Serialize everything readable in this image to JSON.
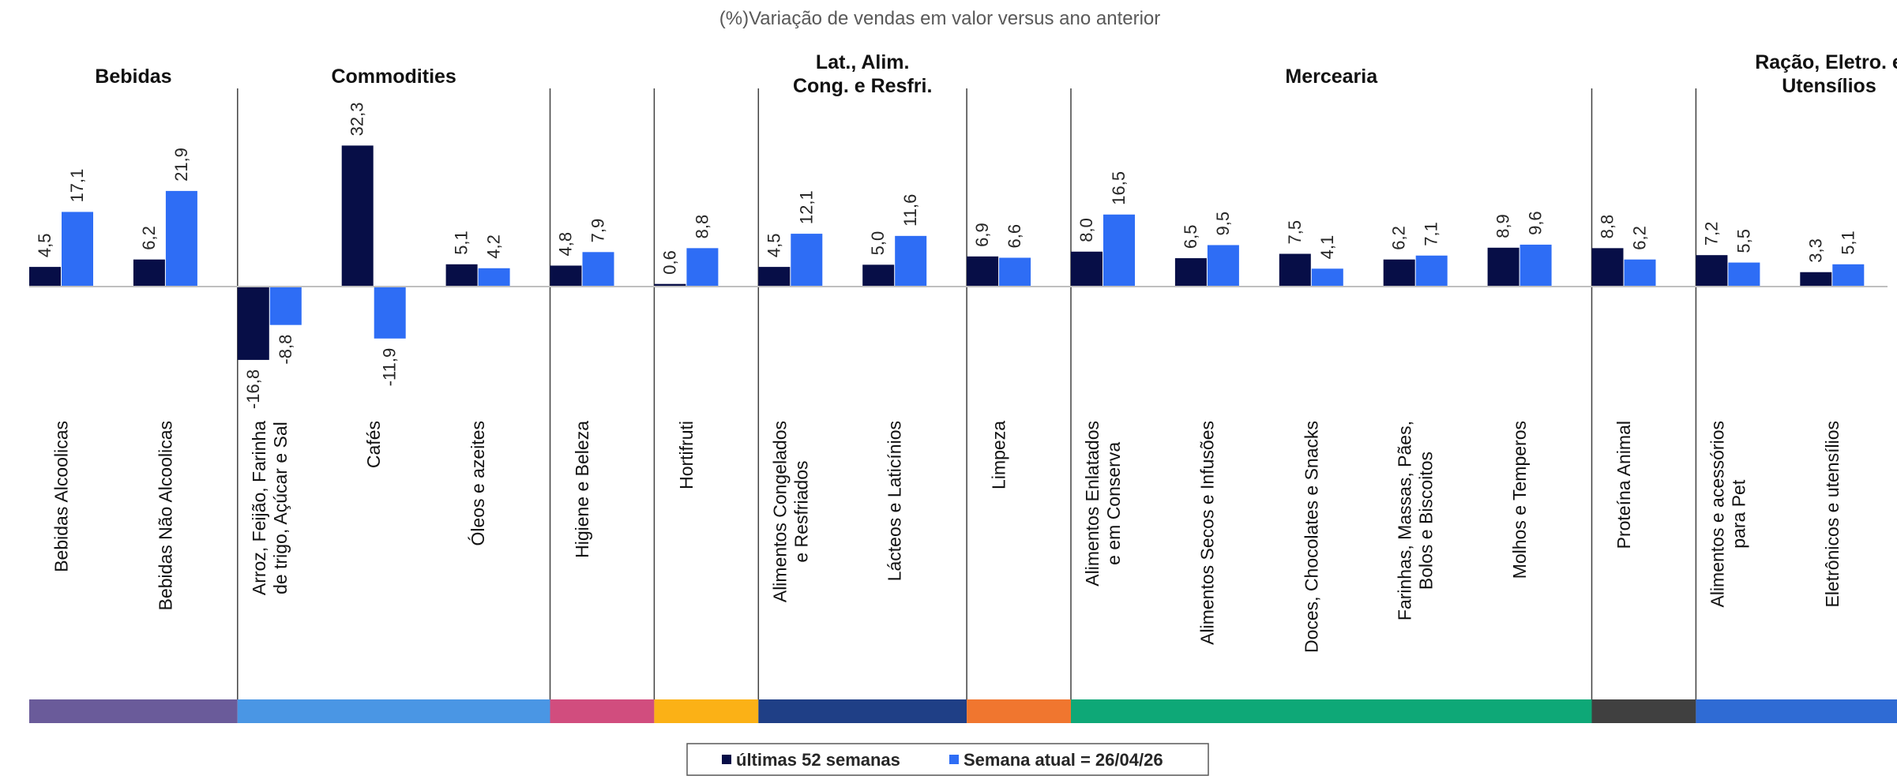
{
  "chart_data": {
    "type": "bar",
    "title": "(%)Variação de vendas em valor versus ano anterior",
    "xlabel": "",
    "ylabel": "",
    "ylim": [
      -21,
      40
    ],
    "grid": false,
    "legend_position": "bottom",
    "groups": [
      {
        "name": "Bebidas",
        "color": "#6A5B9A",
        "categories": [
          "Bebidas Alcoolicas",
          "Bebidas Não Alcoolicas"
        ]
      },
      {
        "name": "Commodities",
        "color": "#4A96E4",
        "categories": [
          "Arroz, Feijão, Farinha de trigo, Açúcar e Sal",
          "Cafés",
          "Óleos e azeites"
        ]
      },
      {
        "name": "",
        "color": "#D14D7E",
        "categories": [
          "Higiene e Beleza"
        ]
      },
      {
        "name": "",
        "color": "#FBB116",
        "categories": [
          "Hortifruti"
        ]
      },
      {
        "name": "Lat., Alim. Cong. e Resfri.",
        "color": "#1F3F86",
        "categories": [
          "Alimentos Congelados e Resfriados",
          "Lácteos e Laticínios"
        ]
      },
      {
        "name": "",
        "color": "#F0762F",
        "categories": [
          "Limpeza"
        ]
      },
      {
        "name": "Mercearia",
        "color": "#0EA877",
        "categories": [
          "Alimentos Enlatados e em Conserva",
          "Alimentos Secos e Infusões",
          "Doces, Chocolates e Snacks",
          "Farinhas, Massas, Pães, Bolos e Biscoitos",
          "Molhos e Temperos"
        ]
      },
      {
        "name": "",
        "color": "#404040",
        "categories": [
          "Proteína Animal"
        ]
      },
      {
        "name": "Ração, Eletro. e Utensílios",
        "color": "#2F6BD4",
        "categories": [
          "Alimentos e acessórios para Pet",
          "Eletrônicos e utensílios"
        ]
      }
    ],
    "categories": [
      "Bebidas Alcoolicas",
      "Bebidas Não Alcoolicas",
      "Arroz, Feijão, Farinha de trigo, Açúcar e Sal",
      "Cafés",
      "Óleos e azeites",
      "Higiene e Beleza",
      "Hortifruti",
      "Alimentos Congelados e Resfriados",
      "Lácteos e Laticínios",
      "Limpeza",
      "Alimentos Enlatados e em Conserva",
      "Alimentos Secos e Infusões",
      "Doces, Chocolates e Snacks",
      "Farinhas, Massas, Pães, Bolos e Biscoitos",
      "Molhos e Temperos",
      "Proteína Animal",
      "Alimentos e acessórios para Pet",
      "Eletrônicos e utensílios"
    ],
    "series": [
      {
        "name": "últimas 52 semanas",
        "color": "#070E47",
        "values": [
          4.5,
          6.2,
          -16.8,
          32.3,
          5.1,
          4.8,
          0.6,
          4.5,
          5.0,
          6.9,
          8.0,
          6.5,
          7.5,
          6.2,
          8.9,
          8.8,
          7.2,
          3.3
        ],
        "labels": [
          "4,5",
          "6,2",
          "-16,8",
          "32,3",
          "5,1",
          "4,8",
          "0,6",
          "4,5",
          "5,0",
          "6,9",
          "8,0",
          "6,5",
          "7,5",
          "6,2",
          "8,9",
          "8,8",
          "7,2",
          "3,3"
        ]
      },
      {
        "name": "Semana atual = 26/04/26",
        "color": "#2E6DF5",
        "values": [
          17.1,
          21.9,
          -8.8,
          -11.9,
          4.2,
          7.9,
          8.8,
          12.1,
          11.6,
          6.6,
          16.5,
          9.5,
          4.1,
          7.1,
          9.6,
          6.2,
          5.5,
          5.1
        ],
        "labels": [
          "17,1",
          "21,9",
          "-8,8",
          "-11,9",
          "4,2",
          "7,9",
          "8,8",
          "12,1",
          "11,6",
          "6,6",
          "16,5",
          "9,5",
          "4,1",
          "7,1",
          "9,6",
          "6,2",
          "5,5",
          "5,1"
        ]
      }
    ]
  }
}
